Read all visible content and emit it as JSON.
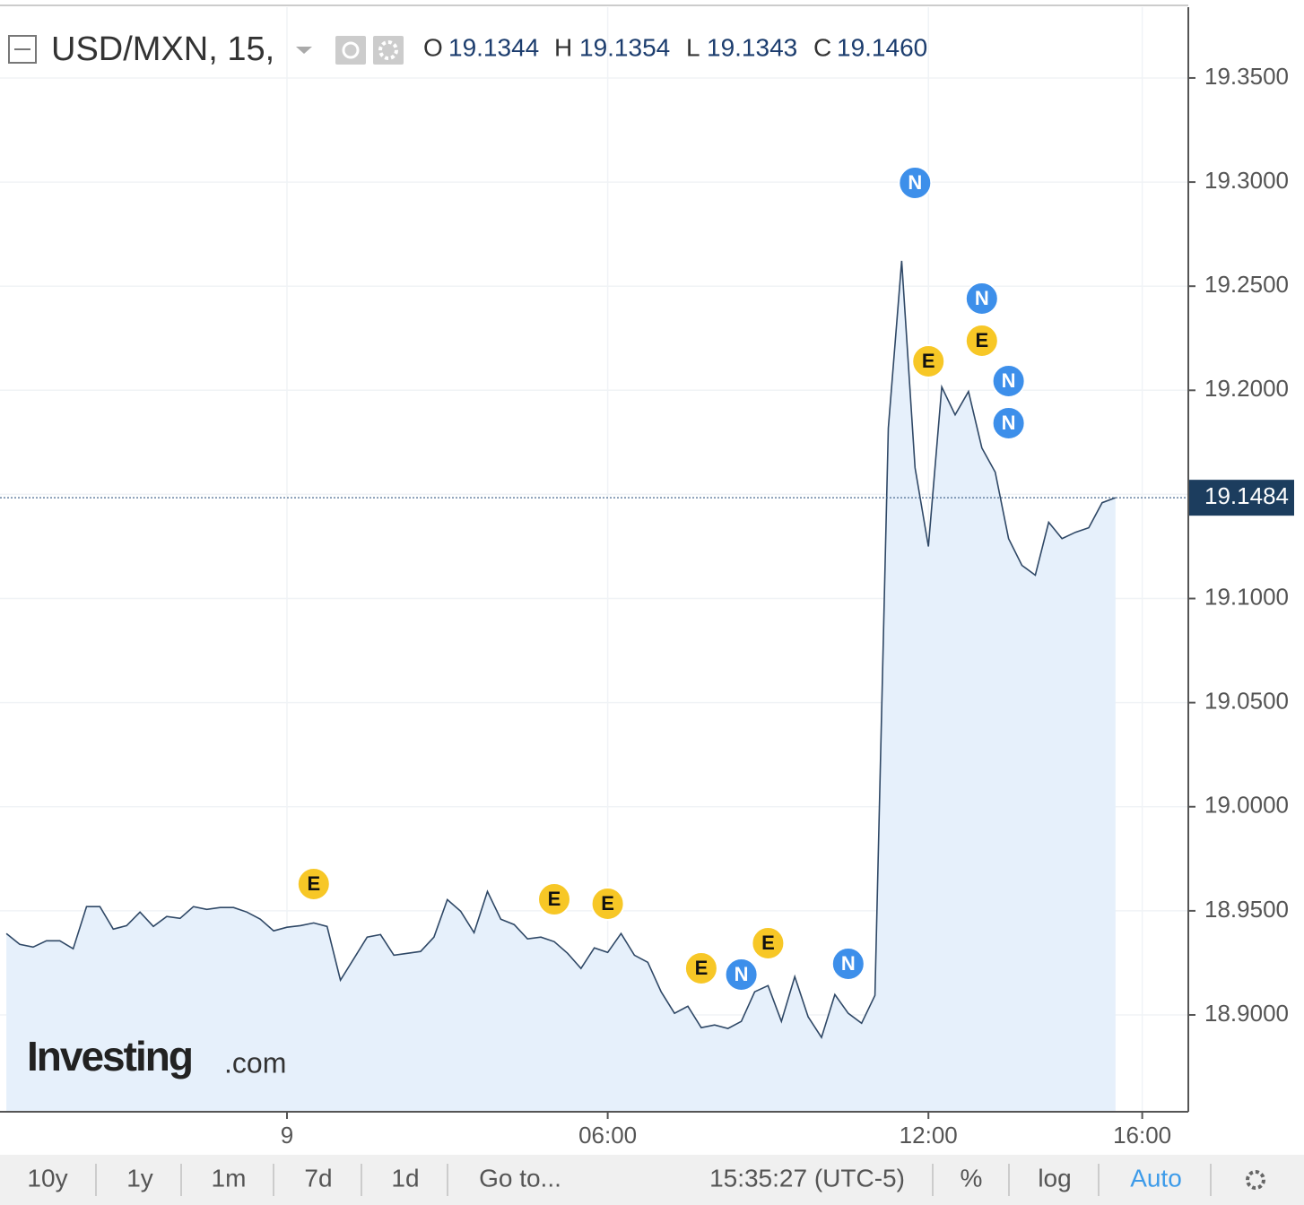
{
  "chart_data": {
    "type": "line",
    "area": true,
    "color": "#2f4866",
    "fill": "#e6f0fb",
    "symbol": "USD/MXN, 15,",
    "ohlc": [
      {
        "key": "O",
        "value": "19.1344"
      },
      {
        "key": "H",
        "value": "19.1354"
      },
      {
        "key": "L",
        "value": "19.1343"
      },
      {
        "key": "C",
        "value": "19.1460"
      }
    ],
    "x": [
      -5.25,
      -5,
      -4.75,
      -4.5,
      -4.25,
      -4,
      -3.75,
      -3.5,
      -3.25,
      -3,
      -2.75,
      -2.5,
      -2.25,
      -2,
      -1.75,
      -1.5,
      -1.25,
      -1,
      -0.75,
      -0.5,
      -0.25,
      0,
      0.25,
      0.5,
      0.75,
      1,
      1.25,
      1.5,
      1.75,
      2,
      2.25,
      2.5,
      2.75,
      3,
      3.25,
      3.5,
      3.75,
      4,
      4.25,
      4.5,
      4.75,
      5,
      5.25,
      5.5,
      5.75,
      6,
      6.25,
      6.5,
      6.75,
      7,
      7.25,
      7.5,
      7.75,
      8,
      8.25,
      8.5,
      8.75,
      9,
      9.25,
      9.5,
      9.75,
      10,
      10.25,
      10.5,
      10.75,
      11,
      11.25,
      11.5,
      11.75,
      12,
      12.25,
      12.5,
      12.75,
      13,
      13.25,
      13.5,
      13.75,
      14,
      14.25,
      14.5,
      14.75,
      15,
      15.25,
      15.5
    ],
    "values": [
      18.9391,
      18.9339,
      18.9326,
      18.9356,
      18.9356,
      18.9318,
      18.952,
      18.952,
      18.9412,
      18.9429,
      18.9494,
      18.9425,
      18.9473,
      18.9464,
      18.952,
      18.9507,
      18.9516,
      18.9516,
      18.9494,
      18.946,
      18.9404,
      18.9421,
      18.9429,
      18.9442,
      18.9425,
      18.9167,
      18.927,
      18.9374,
      18.9386,
      18.9287,
      18.9296,
      18.9305,
      18.9374,
      18.9554,
      18.9498,
      18.9395,
      18.9593,
      18.946,
      18.9434,
      18.9365,
      18.9374,
      18.9352,
      18.9296,
      18.9223,
      18.9322,
      18.93,
      18.9391,
      18.9287,
      18.9253,
      18.9111,
      18.9008,
      18.9042,
      18.8939,
      18.8952,
      18.8935,
      18.8969,
      18.9111,
      18.9141,
      18.8969,
      18.9184,
      18.8991,
      18.8892,
      18.9098,
      18.9008,
      18.896,
      18.9094,
      19.1818,
      19.2622,
      19.1628,
      19.125,
      19.2016,
      19.1882,
      19.1994,
      19.1723,
      19.1607,
      19.1288,
      19.1159,
      19.1112,
      19.1366,
      19.1288,
      19.1318,
      19.134,
      19.146,
      19.1484
    ],
    "last_price": 19.1484,
    "xlim": [
      -5.369,
      16.862
    ],
    "xticks": [
      {
        "value": 0,
        "label": "9"
      },
      {
        "value": 6,
        "label": "06:00"
      },
      {
        "value": 12,
        "label": "12:00"
      },
      {
        "value": 16,
        "label": "16:00"
      }
    ],
    "ylim": [
      18.8535,
      19.384
    ],
    "yticks": [
      {
        "value": 18.9,
        "label": "18.9000"
      },
      {
        "value": 18.95,
        "label": "18.9500"
      },
      {
        "value": 19,
        "label": "19.0000"
      },
      {
        "value": 19.05,
        "label": "19.0500"
      },
      {
        "value": 19.1,
        "label": "19.1000"
      },
      {
        "value": 19.15,
        "label": "19.1500"
      },
      {
        "value": 19.2,
        "label": "19.2000"
      },
      {
        "value": 19.25,
        "label": "19.2500"
      },
      {
        "value": 19.3,
        "label": "19.3000"
      },
      {
        "value": 19.35,
        "label": "19.3500"
      }
    ],
    "grid": true,
    "events": [
      {
        "label": "E",
        "x": 0.5
      },
      {
        "label": "E",
        "x": 5
      },
      {
        "label": "E",
        "x": 6
      },
      {
        "label": "E",
        "x": 7.75
      },
      {
        "label": "N",
        "x": 8.5
      },
      {
        "label": "E",
        "x": 9
      },
      {
        "label": "N",
        "x": 10.5
      },
      {
        "label": "N",
        "x": 11.75
      },
      {
        "label": "E",
        "x": 12
      },
      {
        "label": "N",
        "x": 13
      },
      {
        "label": "E",
        "x": 13
      },
      {
        "label": "N",
        "x": 13.5
      },
      {
        "label": "N",
        "x": 13.5
      }
    ],
    "logo": {
      "brand": "Investing",
      "suffix": ".com"
    },
    "toolbar": {
      "ranges": [
        "10y",
        "1y",
        "1m",
        "7d",
        "1d"
      ],
      "goto": "Go to...",
      "time": "15:35:27 (UTC-5)",
      "percent": "%",
      "log": "log",
      "auto": "Auto"
    }
  }
}
